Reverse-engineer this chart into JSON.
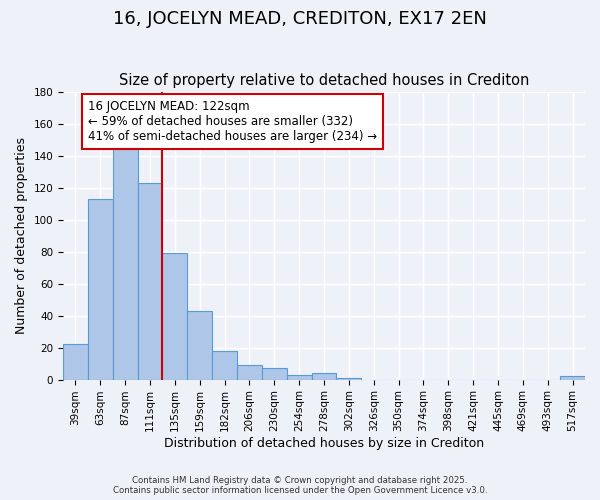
{
  "title": "16, JOCELYN MEAD, CREDITON, EX17 2EN",
  "subtitle": "Size of property relative to detached houses in Crediton",
  "xlabel": "Distribution of detached houses by size in Crediton",
  "ylabel": "Number of detached properties",
  "bar_values": [
    22,
    113,
    148,
    123,
    79,
    43,
    18,
    9,
    7,
    3,
    4,
    1,
    0,
    0,
    0,
    0,
    0,
    0,
    0,
    0,
    2
  ],
  "bar_labels": [
    "39sqm",
    "63sqm",
    "87sqm",
    "111sqm",
    "135sqm",
    "159sqm",
    "182sqm",
    "206sqm",
    "230sqm",
    "254sqm",
    "278sqm",
    "302sqm",
    "326sqm",
    "350sqm",
    "374sqm",
    "398sqm",
    "421sqm",
    "445sqm",
    "469sqm",
    "493sqm",
    "517sqm"
  ],
  "bar_color": "#aec6e8",
  "bar_edge_color": "#5b9bd5",
  "bar_width": 1.0,
  "vline_x": 3.5,
  "vline_color": "#cc0000",
  "annotation_text": "16 JOCELYN MEAD: 122sqm\n← 59% of detached houses are smaller (332)\n41% of semi-detached houses are larger (234) →",
  "annotation_box_color": "#ffffff",
  "annotation_box_edge": "#cc0000",
  "ylim": [
    0,
    180
  ],
  "yticks": [
    0,
    20,
    40,
    60,
    80,
    100,
    120,
    140,
    160,
    180
  ],
  "footer1": "Contains HM Land Registry data © Crown copyright and database right 2025.",
  "footer2": "Contains public sector information licensed under the Open Government Licence v3.0.",
  "bg_color": "#eef2f8",
  "plot_bg_color": "#eef2f8",
  "grid_color": "#ffffff",
  "title_fontsize": 13,
  "subtitle_fontsize": 10.5,
  "label_fontsize": 9,
  "tick_fontsize": 7.5,
  "annotation_fontsize": 8.5
}
